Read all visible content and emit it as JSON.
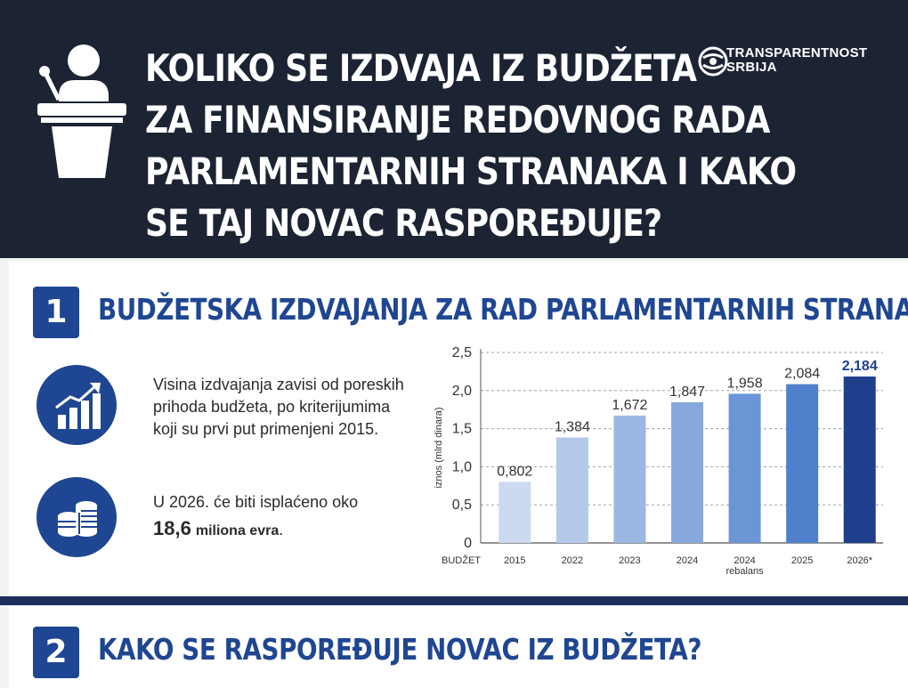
{
  "header": {
    "title_lines": [
      "KOLIKO SE IZDVAJA IZ BUDŽETA",
      "ZA FINANSIRANJE REDOVNOG RADA",
      "PARLAMENTARNIH STRANAKA I KAKO",
      "SE TAJ NOVAC RASPOREĐUJE?"
    ],
    "brand_line1": "TRANSPARENTNOST",
    "brand_line2": "SRBIJA"
  },
  "section1": {
    "number": "1",
    "title": "BUDŽETSKA IZDVAJANJA ZA RAD PARLAMENTARNIH STRANAKA",
    "text1": "Visina izdvajanja zavisi od poreskih prihoda budžeta, po kriterijumima koji su prvi put primenjeni 2015.",
    "text2_prefix": "U 2026. će biti isplaćeno oko",
    "text2_amount": "18,6",
    "text2_unit": "miliona evra",
    "text2_suffix": "."
  },
  "section2": {
    "number": "2",
    "title": "KAKO SE RASPOREĐUJE NOVAC IZ BUDŽETA?"
  },
  "colors": {
    "navy": "#1c2333",
    "accent": "#1f4692",
    "bar_light": "#c8d7ef",
    "bar_dark": "#1f3f8c"
  },
  "icons": {
    "podium": "podium-speaker-icon",
    "chart": "bar-chart-growth-icon",
    "coins": "coins-icon",
    "brand": "transparency-logo-icon"
  },
  "chart_data": {
    "type": "bar",
    "x_axis_label": "BUDŽET",
    "ylabel": "iznos (mlrd dinara)",
    "categories": [
      "2015",
      "2022",
      "2023",
      "2024",
      "2024",
      "2025",
      "2026*"
    ],
    "category_sublabels": [
      "",
      "",
      "",
      "",
      "rebalans",
      "",
      ""
    ],
    "values": [
      0.802,
      1.384,
      1.672,
      1.847,
      1.958,
      2.084,
      2.184
    ],
    "value_labels": [
      "0,802",
      "1,384",
      "1,672",
      "1,847",
      "1,958",
      "2,084",
      "2,184"
    ],
    "highlighted_index": 6,
    "ylim": [
      0,
      2.5
    ],
    "yticks": [
      0,
      0.5,
      1.0,
      1.5,
      2.0,
      2.5
    ],
    "ytick_labels": [
      "0",
      "0,5",
      "1,0",
      "1,5",
      "2,0",
      "2,5"
    ],
    "grid": true,
    "bar_colors": [
      "#ccdaf0",
      "#b4c9ea",
      "#9cb8e2",
      "#86a8dc",
      "#6b95d4",
      "#4f80cc",
      "#1f3f8c"
    ]
  }
}
